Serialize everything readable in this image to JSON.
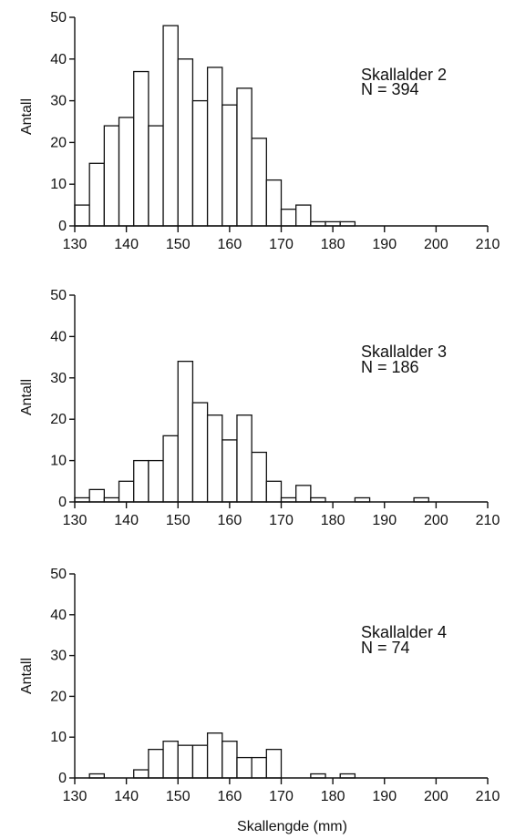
{
  "chart_data": [
    {
      "type": "bar",
      "annotation_title": "Skallalder 2",
      "annotation_n": "N = 394",
      "ylabel": "Antall",
      "xlabel": "",
      "xlim": [
        130,
        210
      ],
      "ylim": [
        0,
        50
      ],
      "x_ticks": [
        "130",
        "140",
        "150",
        "160",
        "170",
        "180",
        "190",
        "200",
        "210"
      ],
      "y_ticks": [
        "0",
        "10",
        "20",
        "30",
        "40",
        "50"
      ],
      "bin_width": 2.857,
      "bin_starts": [
        130,
        132.857,
        135.714,
        138.571,
        141.429,
        144.286,
        147.143,
        150,
        152.857,
        155.714,
        158.571,
        161.429,
        164.286,
        167.143,
        170,
        172.857,
        175.714,
        178.571,
        181.429,
        184.286,
        187.143
      ],
      "values": [
        5,
        15,
        24,
        26,
        37,
        24,
        48,
        40,
        30,
        38,
        29,
        33,
        21,
        11,
        4,
        5,
        1,
        1,
        1,
        0,
        0
      ]
    },
    {
      "type": "bar",
      "annotation_title": "Skallalder 3",
      "annotation_n": "N = 186",
      "ylabel": "Antall",
      "xlabel": "",
      "xlim": [
        130,
        210
      ],
      "ylim": [
        0,
        50
      ],
      "x_ticks": [
        "130",
        "140",
        "150",
        "160",
        "170",
        "180",
        "190",
        "200",
        "210"
      ],
      "y_ticks": [
        "0",
        "10",
        "20",
        "30",
        "40",
        "50"
      ],
      "bin_width": 2.857,
      "bin_starts": [
        130,
        132.857,
        135.714,
        138.571,
        141.429,
        144.286,
        147.143,
        150,
        152.857,
        155.714,
        158.571,
        161.429,
        164.286,
        167.143,
        170,
        172.857,
        175.714,
        178.571,
        181.429,
        184.286,
        187.143,
        190,
        192.857,
        195.714,
        198.571
      ],
      "values": [
        1,
        3,
        1,
        5,
        10,
        10,
        16,
        34,
        24,
        21,
        15,
        21,
        12,
        5,
        1,
        4,
        1,
        0,
        0,
        1,
        0,
        0,
        0,
        1,
        0
      ]
    },
    {
      "type": "bar",
      "annotation_title": "Skallalder 4",
      "annotation_n": "N = 74",
      "ylabel": "Antall",
      "xlabel": "Skallengde (mm)",
      "xlim": [
        130,
        210
      ],
      "ylim": [
        0,
        50
      ],
      "x_ticks": [
        "130",
        "140",
        "150",
        "160",
        "170",
        "180",
        "190",
        "200",
        "210"
      ],
      "y_ticks": [
        "0",
        "10",
        "20",
        "30",
        "40",
        "50"
      ],
      "bin_width": 2.857,
      "bin_starts": [
        130,
        132.857,
        135.714,
        138.571,
        141.429,
        144.286,
        147.143,
        150,
        152.857,
        155.714,
        158.571,
        161.429,
        164.286,
        167.143,
        170,
        172.857,
        175.714,
        178.571,
        181.429,
        184.286
      ],
      "values": [
        0,
        1,
        0,
        0,
        2,
        7,
        9,
        8,
        8,
        11,
        9,
        5,
        5,
        7,
        0,
        0,
        1,
        0,
        1,
        0
      ]
    }
  ]
}
